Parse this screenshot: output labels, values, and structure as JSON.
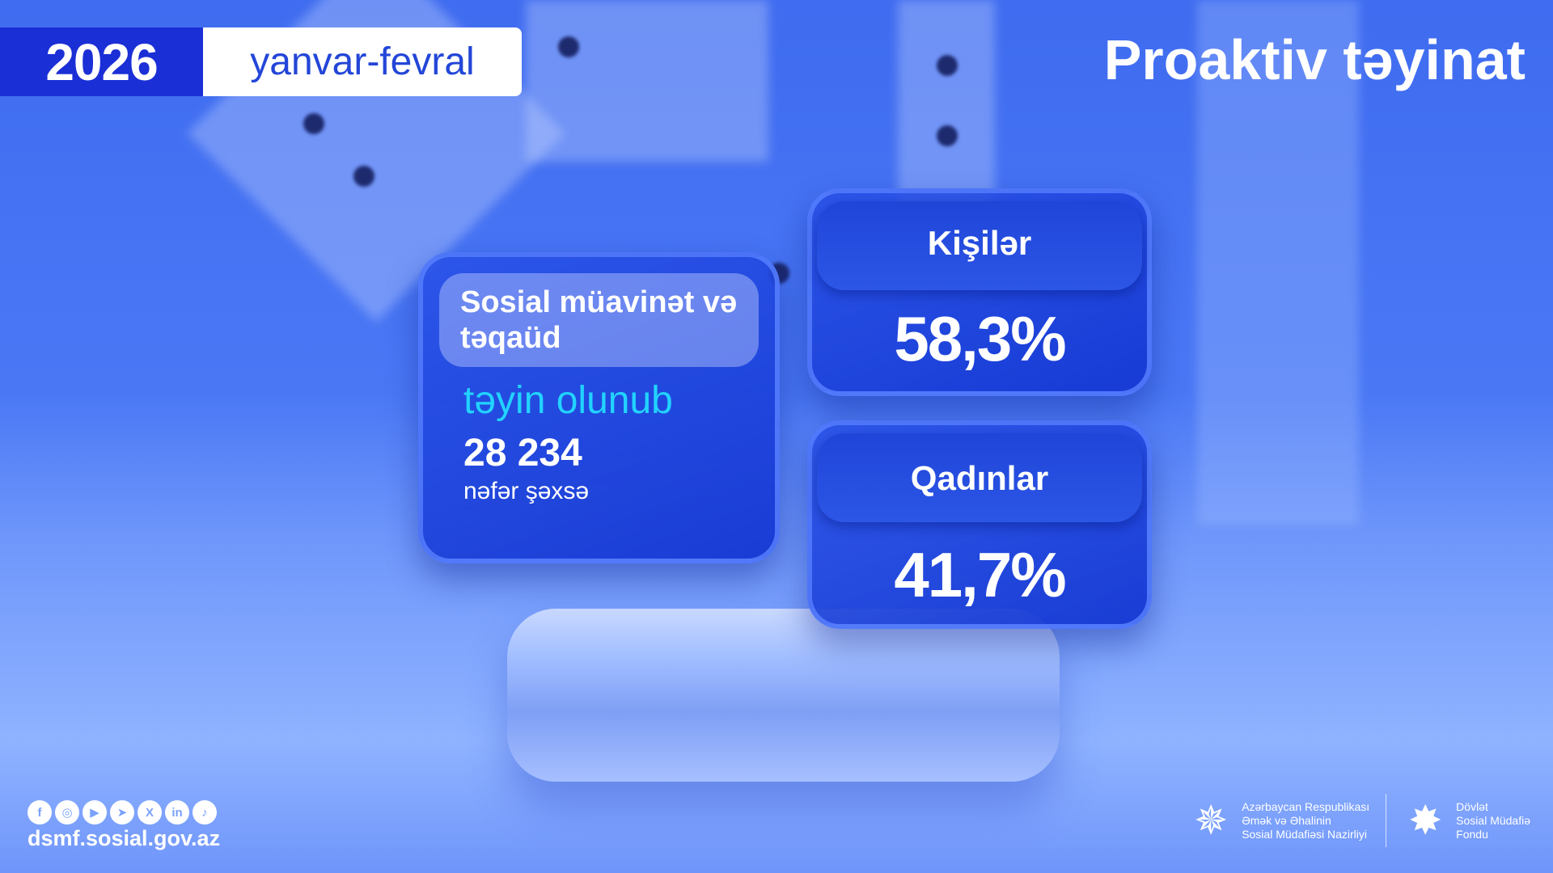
{
  "header": {
    "year": "2026",
    "period": "yanvar-fevral",
    "title": "Proaktiv təyinat"
  },
  "main_card": {
    "heading": "Sosial müavinət və təqaüd",
    "status": "təyin olunub",
    "count": "28 234",
    "unit": "nəfər şəxsə"
  },
  "stats": [
    {
      "label": "Kişilər",
      "value": "58,3%"
    },
    {
      "label": "Qadınlar",
      "value": "41,7%"
    }
  ],
  "footer": {
    "social_icons": [
      "facebook-icon",
      "instagram-icon",
      "youtube-icon",
      "telegram-icon",
      "x-icon",
      "linkedin-icon",
      "tiktok-icon"
    ],
    "url": "dsmf.sosial.gov.az",
    "logo1": [
      "Azərbaycan Respublikası",
      "Əmək və Əhalinin",
      "Sosial Müdafiəsi Nazirliyi"
    ],
    "logo2": [
      "Dövlət",
      "Sosial Müdafiə",
      "Fondu"
    ]
  },
  "colors": {
    "year_bg": "#1b2fd6",
    "period_text": "#2346d8",
    "accent_cyan": "#22d3ff"
  }
}
